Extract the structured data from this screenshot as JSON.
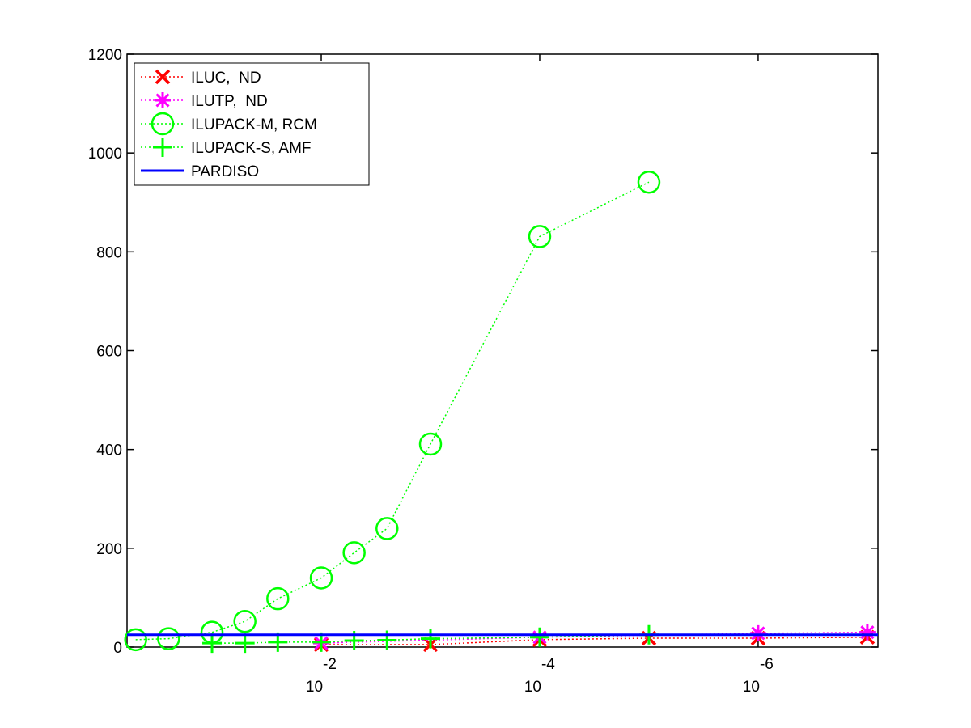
{
  "chart_data": {
    "type": "line",
    "xscale": "log",
    "xreversed": true,
    "xlim": [
      0.6,
      8e-08
    ],
    "ylim": [
      0,
      1200
    ],
    "xticks": [
      {
        "value": 0.01,
        "label": "10",
        "exponent": "-2"
      },
      {
        "value": 0.0001,
        "label": "10",
        "exponent": "-4"
      },
      {
        "value": 1e-06,
        "label": "10",
        "exponent": "-6"
      }
    ],
    "yticks": [
      0,
      200,
      400,
      600,
      800,
      1000,
      1200
    ],
    "legend": "upper left",
    "series": [
      {
        "name": "ILUC,  ND",
        "color": "#ff0000",
        "marker": "x",
        "linestyle": "dotted",
        "x": [
          0.01,
          0.001,
          0.0001,
          1e-05,
          1e-06,
          1e-07
        ],
        "values": [
          5,
          5,
          15,
          18,
          18,
          20
        ]
      },
      {
        "name": "ILUTP,  ND",
        "color": "#ff00ff",
        "marker": "star",
        "linestyle": "dotted",
        "x": [
          0.01,
          0.0001,
          1e-06,
          1e-07
        ],
        "values": [
          8,
          20,
          28,
          30
        ]
      },
      {
        "name": "ILUPACK-M, RCM",
        "color": "#00ff00",
        "marker": "circle",
        "linestyle": "dotted",
        "x": [
          0.5,
          0.25,
          0.1,
          0.05,
          0.025,
          0.01,
          0.005,
          0.0025,
          0.001,
          0.0001,
          1e-05
        ],
        "values": [
          15,
          17,
          30,
          52,
          98,
          140,
          191,
          240,
          411,
          831,
          941
        ]
      },
      {
        "name": "ILUPACK-S, AMF",
        "color": "#00ff00",
        "marker": "plus",
        "linestyle": "dotted",
        "x": [
          0.1,
          0.05,
          0.025,
          0.01,
          0.005,
          0.0025,
          0.001,
          0.0001,
          1e-05
        ],
        "values": [
          8,
          8,
          10,
          10,
          13,
          14,
          17,
          20,
          25
        ]
      },
      {
        "name": "PARDISO",
        "color": "#0000ff",
        "marker": "none",
        "linestyle": "solid",
        "x": [
          0.6,
          8e-08
        ],
        "values": [
          25,
          25
        ]
      }
    ]
  }
}
